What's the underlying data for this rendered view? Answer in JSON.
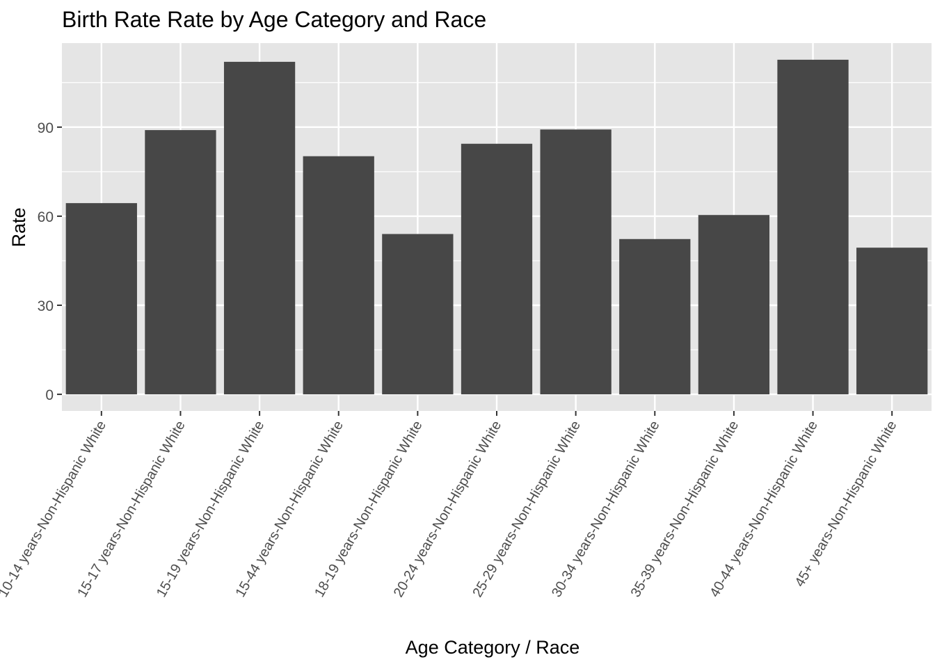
{
  "chart_data": {
    "type": "bar",
    "title": "Birth Rate Rate by Age Category and Race",
    "xlabel": "Age Category / Race",
    "ylabel": "Rate",
    "categories": [
      "10-14 years-Non-Hispanic White",
      "15-17 years-Non-Hispanic White",
      "15-19 years-Non-Hispanic White",
      "15-44 years-Non-Hispanic White",
      "18-19 years-Non-Hispanic White",
      "20-24 years-Non-Hispanic White",
      "25-29 years-Non-Hispanic White",
      "30-34 years-Non-Hispanic White",
      "35-39 years-Non-Hispanic White",
      "40-44 years-Non-Hispanic White",
      "45+ years-Non-Hispanic White"
    ],
    "values": [
      64.4,
      89.0,
      112.0,
      80.2,
      54.0,
      84.4,
      89.2,
      52.3,
      60.4,
      112.7,
      49.4
    ],
    "yticks": [
      0,
      30,
      60,
      90
    ],
    "ylim": [
      -5.6,
      118.3
    ],
    "grid": true,
    "legend": "none",
    "colors": {
      "bar": "#474747",
      "panel": "#e5e5e5",
      "grid": "#ffffff",
      "text": "#000000",
      "tick_text": "#4d4d4d",
      "tick": "#333333"
    }
  }
}
